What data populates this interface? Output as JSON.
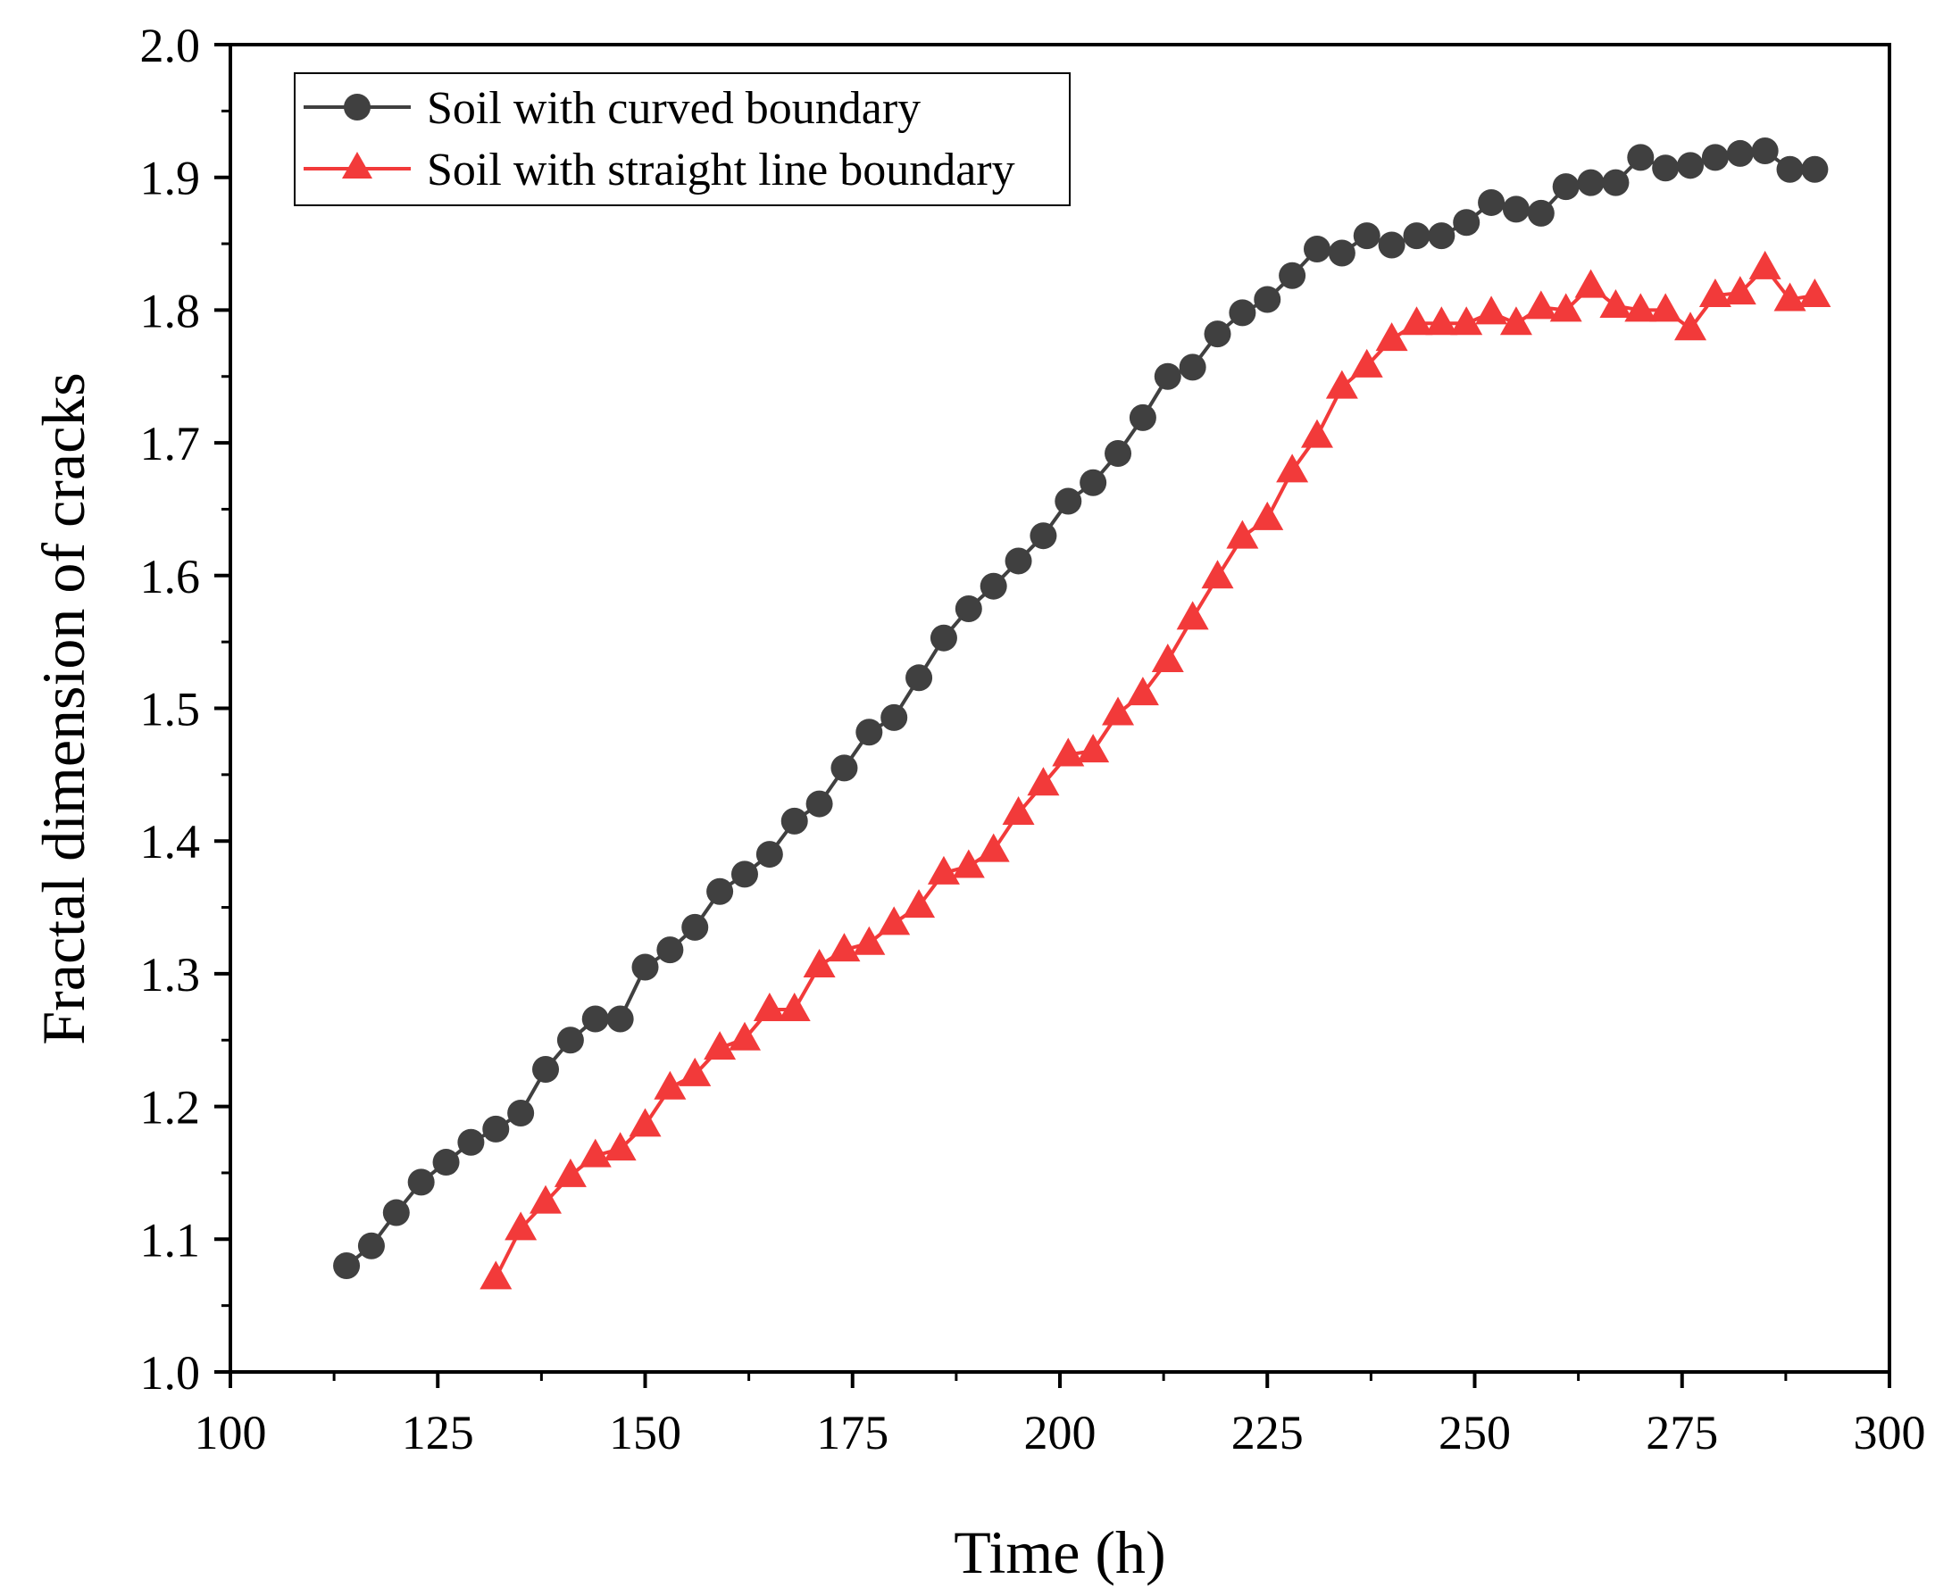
{
  "chart_data": {
    "type": "line",
    "title": "",
    "xlabel": "Time (h)",
    "ylabel": "Fractal dimension of cracks",
    "xlim": [
      100,
      300
    ],
    "ylim": [
      1.0,
      2.0
    ],
    "x_ticks": [
      "100",
      "125",
      "150",
      "175",
      "200",
      "225",
      "250",
      "275",
      "300"
    ],
    "y_ticks": [
      "1.0",
      "1.1",
      "1.2",
      "1.3",
      "1.4",
      "1.5",
      "1.6",
      "1.7",
      "1.8",
      "1.9",
      "2.0"
    ],
    "grid": false,
    "legend_position": "top-left",
    "series": [
      {
        "name": "Soil with curved boundary",
        "color": "#404040",
        "marker": "circle",
        "x": [
          114,
          117,
          120,
          123,
          126,
          129,
          132,
          135,
          138,
          141,
          144,
          147,
          150,
          153,
          156,
          159,
          162,
          165,
          168,
          171,
          174,
          177,
          180,
          183,
          186,
          189,
          192,
          195,
          198,
          201,
          204,
          207,
          210,
          213,
          216,
          219,
          222,
          225,
          228,
          231,
          234,
          237,
          240,
          243,
          246,
          249,
          252,
          255,
          258,
          261,
          264,
          267,
          270,
          273,
          276,
          279,
          282,
          285,
          288,
          291
        ],
        "y": [
          1.08,
          1.095,
          1.12,
          1.143,
          1.158,
          1.173,
          1.183,
          1.195,
          1.228,
          1.25,
          1.266,
          1.266,
          1.305,
          1.318,
          1.335,
          1.362,
          1.375,
          1.39,
          1.415,
          1.428,
          1.455,
          1.482,
          1.493,
          1.523,
          1.553,
          1.575,
          1.592,
          1.611,
          1.63,
          1.656,
          1.67,
          1.692,
          1.719,
          1.75,
          1.757,
          1.782,
          1.798,
          1.808,
          1.826,
          1.846,
          1.843,
          1.856,
          1.849,
          1.856,
          1.856,
          1.866,
          1.881,
          1.876,
          1.873,
          1.893,
          1.896,
          1.896,
          1.915,
          1.907,
          1.909,
          1.915,
          1.918,
          1.92,
          1.906,
          1.906
        ]
      },
      {
        "name": "Soil with straight line boundary",
        "color": "#f23a3a",
        "marker": "triangle",
        "x": [
          132,
          135,
          138,
          141,
          144,
          147,
          150,
          153,
          156,
          159,
          162,
          165,
          168,
          171,
          174,
          177,
          180,
          183,
          186,
          189,
          192,
          195,
          198,
          201,
          204,
          207,
          210,
          213,
          216,
          219,
          222,
          225,
          228,
          231,
          234,
          237,
          240,
          243,
          246,
          249,
          252,
          255,
          258,
          261,
          264,
          267,
          270,
          273,
          276,
          279,
          282,
          285,
          288,
          291
        ],
        "y": [
          1.071,
          1.108,
          1.128,
          1.148,
          1.163,
          1.168,
          1.186,
          1.214,
          1.224,
          1.244,
          1.251,
          1.273,
          1.273,
          1.306,
          1.318,
          1.323,
          1.338,
          1.351,
          1.376,
          1.381,
          1.393,
          1.421,
          1.443,
          1.465,
          1.468,
          1.496,
          1.511,
          1.536,
          1.568,
          1.599,
          1.629,
          1.643,
          1.679,
          1.705,
          1.742,
          1.758,
          1.778,
          1.79,
          1.79,
          1.79,
          1.798,
          1.79,
          1.802,
          1.8,
          1.818,
          1.803,
          1.8,
          1.8,
          1.786,
          1.811,
          1.813,
          1.832,
          1.808,
          1.811
        ]
      }
    ]
  }
}
